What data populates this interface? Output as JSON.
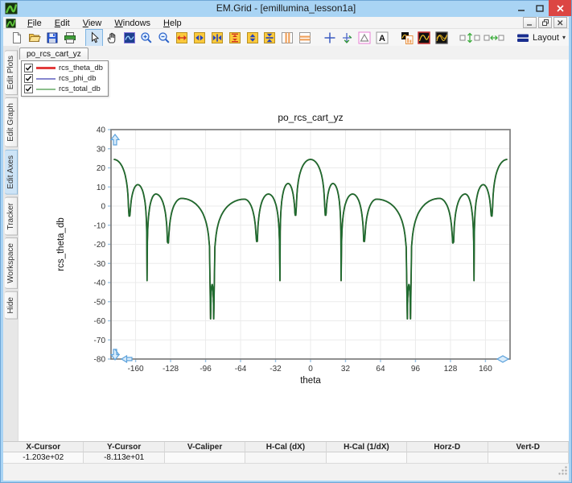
{
  "window": {
    "title": "EM.Grid - [emillumina_lesson1a]"
  },
  "menu": {
    "items": [
      "File",
      "Edit",
      "View",
      "Windows",
      "Help"
    ]
  },
  "toolbar": {
    "layout_label": "Layout",
    "items": [
      {
        "icon": "new-file"
      },
      {
        "icon": "open-file"
      },
      {
        "icon": "save-file"
      },
      {
        "icon": "print"
      },
      {
        "sep": true
      },
      {
        "icon": "pointer",
        "pressed": true
      },
      {
        "icon": "pan-hand"
      },
      {
        "icon": "zoom-region"
      },
      {
        "icon": "zoom-in"
      },
      {
        "icon": "zoom-out"
      },
      {
        "icon": "expand-x"
      },
      {
        "icon": "arrows-x"
      },
      {
        "icon": "fit-x"
      },
      {
        "icon": "expand-y"
      },
      {
        "icon": "arrows-y"
      },
      {
        "icon": "fit-y"
      },
      {
        "icon": "columns"
      },
      {
        "icon": "rows"
      },
      {
        "sep": true
      },
      {
        "icon": "crosshair"
      },
      {
        "icon": "tracker-axes"
      },
      {
        "icon": "caliper-triangle"
      },
      {
        "icon": "text-annotation"
      },
      {
        "sep": true
      },
      {
        "icon": "plot-column"
      },
      {
        "icon": "plot-curve"
      },
      {
        "icon": "plot-curves"
      },
      {
        "sep": true
      },
      {
        "icon": "align-vertical",
        "wide": true
      },
      {
        "icon": "align-horizontal",
        "wide": true
      },
      {
        "sep": true
      },
      {
        "icon": "layout",
        "dropdown": true
      }
    ]
  },
  "sidebar": {
    "tabs": [
      {
        "label": "Edit Plots",
        "selected": false
      },
      {
        "label": "Edit Graph",
        "selected": false
      },
      {
        "label": "Edit Axes",
        "selected": true
      },
      {
        "label": "Tracker",
        "selected": false
      },
      {
        "label": "Workspace",
        "selected": false
      },
      {
        "label": "Hide",
        "selected": false
      }
    ]
  },
  "document": {
    "tab": "po_rcs_cart_yz"
  },
  "legend": {
    "items": [
      {
        "label": "rcs_theta_db",
        "color": "#e23b3b",
        "checked": true,
        "thick": true
      },
      {
        "label": "rcs_phi_db",
        "color": "#8787cf",
        "checked": true,
        "thick": false
      },
      {
        "label": "rcs_total_db",
        "color": "#8cbf8c",
        "checked": true,
        "thick": false
      }
    ]
  },
  "chart_data": {
    "type": "line",
    "title": "po_rcs_cart_yz",
    "xlabel": "theta",
    "ylabel": "rcs_theta_db",
    "xlim": [
      -182.5,
      182.5
    ],
    "ylim": [
      -80,
      40
    ],
    "xticks": [
      -160,
      -128,
      -96,
      -64,
      -32,
      0,
      32,
      64,
      96,
      128,
      160
    ],
    "yticks": [
      40,
      30,
      20,
      10,
      0,
      -10,
      -20,
      -30,
      -40,
      -50,
      -60,
      -70,
      -80
    ],
    "grid": true,
    "series": [
      {
        "name": "rcs_phi_db",
        "color": "#8787cf",
        "width": 1.4
      },
      {
        "name": "rcs_theta_db",
        "color": "#cc3434",
        "width": 1.6
      },
      {
        "name": "rcs_total_db",
        "color": "#1e6b2f",
        "width": 1.8
      }
    ],
    "keypoints_note": "alternating peak/null (theta_deg, dB); all three series overlap",
    "keypoints": [
      [
        -180,
        24.4
      ],
      [
        -166,
        -5.2
      ],
      [
        -158,
        11.2
      ],
      [
        -149.5,
        -39
      ],
      [
        -141.5,
        6.3
      ],
      [
        -130.5,
        -19.3
      ],
      [
        -118,
        4
      ],
      [
        -91.5,
        -59
      ],
      [
        -90,
        -41
      ],
      [
        -88.5,
        -59
      ],
      [
        -60.5,
        3.6
      ],
      [
        -49,
        -18.5
      ],
      [
        -38.5,
        6.3
      ],
      [
        -28,
        -39
      ],
      [
        -20.5,
        11.8
      ],
      [
        -13.5,
        -4.8
      ],
      [
        0,
        24.4
      ],
      [
        13.5,
        -4.8
      ],
      [
        20.5,
        11.8
      ],
      [
        28,
        -39
      ],
      [
        38.5,
        6.3
      ],
      [
        49,
        -18.5
      ],
      [
        60.5,
        3.6
      ],
      [
        88.5,
        -59
      ],
      [
        90,
        -41
      ],
      [
        91.5,
        -59
      ],
      [
        118,
        4
      ],
      [
        130.5,
        -19.3
      ],
      [
        141.5,
        6.3
      ],
      [
        149.5,
        -39
      ],
      [
        158,
        11.2
      ],
      [
        166,
        -5.2
      ],
      [
        180,
        24.4
      ]
    ]
  },
  "status_table": {
    "headers": [
      "X-Cursor",
      "Y-Cursor",
      "V-Caliper",
      "H-Cal (dX)",
      "H-Cal (1/dX)",
      "Horz-D",
      "Vert-D"
    ],
    "values": [
      "-1.203e+02",
      "-8.113e+01",
      "",
      "",
      "",
      "",
      ""
    ]
  },
  "colors": {
    "titlebar": "#a9d4f4",
    "close_button": "#dc4643",
    "selected_tab": "#cde4f7",
    "curve_total": "#1e6b2f",
    "handle_blue": "#5ea3dc",
    "grid_line": "#ebebeb"
  }
}
